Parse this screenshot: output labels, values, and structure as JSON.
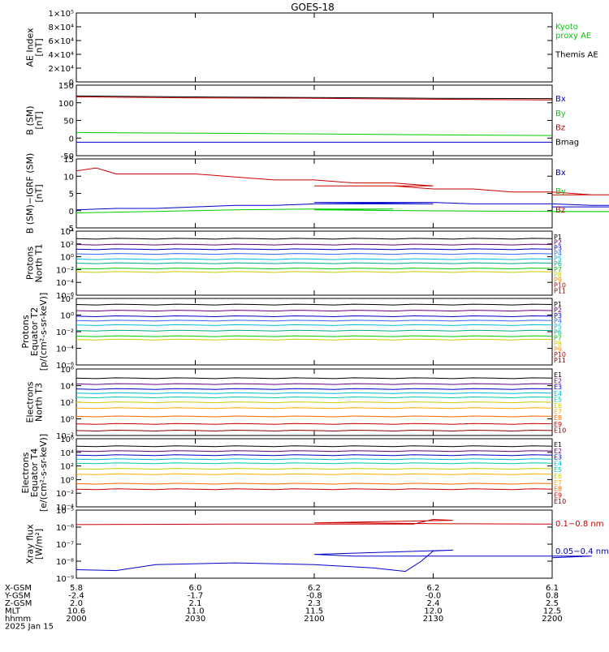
{
  "chart_data": {
    "title": "GOES-18",
    "x_ticks": [
      "2000",
      "2030",
      "2100",
      "2130",
      "2200"
    ],
    "footer": {
      "row_labels": [
        "X-GSM",
        "Y-GSM",
        "Z-GSM",
        "MLT",
        "hhmm",
        "2025 Jan 15"
      ],
      "columns": [
        [
          "5.8",
          "-2.4",
          "2.0",
          "10.6",
          "2000"
        ],
        [
          "6.0",
          "-1.7",
          "2.1",
          "11.0",
          "2030"
        ],
        [
          "6.2",
          "-0.8",
          "2.3",
          "11.5",
          "2100"
        ],
        [
          "6.2",
          "-0.0",
          "2.4",
          "12.0",
          "2130"
        ],
        [
          "6.1",
          "0.8",
          "2.5",
          "12.5",
          "2200"
        ]
      ]
    },
    "panels": [
      {
        "type": "line",
        "ylabel": "AE Index\n[nT]",
        "yticks": [
          "0",
          "2×10⁴",
          "4×10⁴",
          "6×10⁴",
          "8×10⁴",
          "1×10⁵"
        ],
        "legend": [
          {
            "label": "Kyoto\nproxy AE",
            "color": "#00cc00"
          },
          {
            "label": "Themis AE",
            "color": "#000000"
          }
        ],
        "series": []
      },
      {
        "type": "line",
        "ylabel": "B (SM)\n[nT]",
        "ylim": [
          -60,
          150
        ],
        "yticks": [
          "-50",
          "0",
          "50",
          "100",
          "150"
        ],
        "legend": [
          {
            "label": "Bx",
            "color": "#0000cc"
          },
          {
            "label": "By",
            "color": "#00cc00"
          },
          {
            "label": "Bz",
            "color": "#cc0000"
          },
          {
            "label": "Bmag",
            "color": "#000000"
          }
        ],
        "series": [
          {
            "name": "Bmag",
            "color": "#000000",
            "x": [
              2000,
              2030,
              2100,
              2130,
              2200
            ],
            "y": [
              118,
              115,
              113,
              111,
              110
            ]
          },
          {
            "name": "Bz",
            "color": "#cc0000",
            "x": [
              2000,
              2030,
              2100,
              2130,
              2200
            ],
            "y": [
              115,
              112,
              111,
              108,
              106
            ]
          },
          {
            "name": "By",
            "color": "#00cc00",
            "x": [
              2000,
              2030,
              2100,
              2130,
              2200
            ],
            "y": [
              9,
              7,
              5,
              2,
              0
            ]
          },
          {
            "name": "Bx",
            "color": "#0000cc",
            "x": [
              2000,
              2030,
              2100,
              2130,
              2200
            ],
            "y": [
              -20,
              -20,
              -20,
              -20,
              -20
            ]
          }
        ]
      },
      {
        "type": "line",
        "ylabel": "B (SM)−IGRF (SM)\n[nT]",
        "ylim": [
          -6,
          17
        ],
        "yticks": [
          "-5",
          "0",
          "5",
          "10",
          "15"
        ],
        "legend": [
          {
            "label": "Bx",
            "color": "#0000cc"
          },
          {
            "label": "By",
            "color": "#00cc00"
          },
          {
            "label": "Bz",
            "color": "#cc0000"
          }
        ],
        "series": [
          {
            "name": "Bz",
            "color": "#cc0000",
            "x": [
              2000,
              2005,
              2010,
              2020,
              2030,
              2040,
              2050,
              2060,
              2070,
              2080,
              2090,
              2100,
              2110,
              2120,
              2130,
              2140,
              2150,
              2160,
              2170,
              2180,
              2190,
              2200
            ],
            "y": [
              13,
              14,
              12,
              12,
              12,
              11,
              10,
              10,
              9,
              9,
              8,
              8,
              8,
              8,
              7,
              7,
              6,
              6,
              5,
              5,
              5,
              5
            ]
          },
          {
            "name": "Bx",
            "color": "#0000cc",
            "x": [
              2000,
              2010,
              2020,
              2030,
              2040,
              2050,
              2060,
              2070,
              2080,
              2090,
              2100,
              2110,
              2120,
              2130,
              2140,
              2150,
              2160,
              2170,
              2180,
              2190,
              2200
            ],
            "y": [
              0,
              0.5,
              0.5,
              1,
              1.5,
              1.5,
              2,
              2,
              2,
              2,
              2.5,
              2.5,
              2.5,
              2.5,
              2,
              2,
              2,
              1.5,
              1.5,
              1,
              1
            ]
          },
          {
            "name": "By",
            "color": "#00cc00",
            "x": [
              2000,
              2020,
              2040,
              2060,
              2080,
              2100,
              2120,
              2140,
              2160,
              2180,
              2200
            ],
            "y": [
              -1,
              -0.5,
              0,
              0.3,
              0.3,
              0,
              -0.2,
              -0.4,
              -0.5,
              -0.6,
              -0.6
            ]
          }
        ]
      },
      {
        "type": "line",
        "log": true,
        "ylabel": "Protons\nNorth T1",
        "ylim_exp": [
          -7,
          4
        ],
        "yticks": [
          "10⁻⁶",
          "10⁻⁴",
          "10⁻²",
          "10⁰",
          "10²",
          "10⁴"
        ],
        "legend": [
          {
            "label": "P1",
            "color": "#000000"
          },
          {
            "label": "P2",
            "color": "#6a0080"
          },
          {
            "label": "P3",
            "color": "#0000cc"
          },
          {
            "label": "P4",
            "color": "#3366ff"
          },
          {
            "label": "P5",
            "color": "#00bbdd"
          },
          {
            "label": "P6",
            "color": "#00aa88"
          },
          {
            "label": "P7",
            "color": "#00cc00"
          },
          {
            "label": "P8",
            "color": "#cccc00"
          },
          {
            "label": "P9",
            "color": "#ff8800"
          },
          {
            "label": "P10",
            "color": "#cc0000"
          },
          {
            "label": "P11",
            "color": "#880000"
          }
        ],
        "series": [
          {
            "name": "P1",
            "color": "#000000",
            "y_exp": 2.7
          },
          {
            "name": "P2",
            "color": "#6a0080",
            "y_exp": 1.7
          },
          {
            "name": "P3",
            "color": "#0000cc",
            "y_exp": 0.9
          },
          {
            "name": "P4",
            "color": "#3366ff",
            "y_exp": 0.1
          },
          {
            "name": "P5",
            "color": "#00bbdd",
            "y_exp": -0.8
          },
          {
            "name": "P6",
            "color": "#00aa88",
            "y_exp": -1.5
          },
          {
            "name": "P7",
            "color": "#00cc00",
            "y_exp": -2.4
          },
          {
            "name": "P8",
            "color": "#cccc00",
            "y_exp": -3.0
          }
        ]
      },
      {
        "type": "line",
        "log": true,
        "ylabel": "Protons\nEquator T2\n[p/(cm²-s-sr-keV)]",
        "ylim_exp": [
          -8,
          4
        ],
        "yticks": [
          "10⁻⁶",
          "10⁻⁴",
          "10⁻²",
          "10⁰",
          "10²"
        ],
        "legend": [
          {
            "label": "P1",
            "color": "#000000"
          },
          {
            "label": "P2",
            "color": "#6a0080"
          },
          {
            "label": "P3",
            "color": "#0000cc"
          },
          {
            "label": "P4",
            "color": "#3366ff"
          },
          {
            "label": "P5",
            "color": "#00bbdd"
          },
          {
            "label": "P6",
            "color": "#00aa88"
          },
          {
            "label": "P7",
            "color": "#00cc00"
          },
          {
            "label": "P8",
            "color": "#cccc00"
          },
          {
            "label": "P9",
            "color": "#ff8800"
          },
          {
            "label": "P10",
            "color": "#cc0000"
          },
          {
            "label": "P11",
            "color": "#880000"
          }
        ],
        "series": [
          {
            "name": "P1",
            "color": "#000000",
            "y_exp": 2.9
          },
          {
            "name": "P2",
            "color": "#6a0080",
            "y_exp": 1.8
          },
          {
            "name": "P3",
            "color": "#0000cc",
            "y_exp": 0.8
          },
          {
            "name": "P4",
            "color": "#3366ff",
            "y_exp": 0.0
          },
          {
            "name": "P5",
            "color": "#00bbdd",
            "y_exp": -0.8
          },
          {
            "name": "P6",
            "color": "#00aa88",
            "y_exp": -1.8
          },
          {
            "name": "P7",
            "color": "#00cc00",
            "y_exp": -2.8
          },
          {
            "name": "P8",
            "color": "#cccc00",
            "y_exp": -3.4
          }
        ]
      },
      {
        "type": "line",
        "log": true,
        "ylabel": "Electrons\nNorth T3",
        "ylim_exp": [
          -2,
          6
        ],
        "yticks": [
          "10⁻²",
          "10⁰",
          "10²",
          "10⁴",
          "10⁶"
        ],
        "legend": [
          {
            "label": "E1",
            "color": "#000000"
          },
          {
            "label": "E2",
            "color": "#6a0080"
          },
          {
            "label": "E3",
            "color": "#0000cc"
          },
          {
            "label": "E4",
            "color": "#00bbdd"
          },
          {
            "label": "E5",
            "color": "#00ccaa"
          },
          {
            "label": "E6",
            "color": "#cccc00"
          },
          {
            "label": "E7",
            "color": "#ffaa00"
          },
          {
            "label": "E8",
            "color": "#ff6600"
          },
          {
            "label": "E9",
            "color": "#cc0000"
          },
          {
            "label": "E10",
            "color": "#880000"
          }
        ],
        "series": [
          {
            "name": "E1",
            "color": "#000000",
            "y_exp": 4.9
          },
          {
            "name": "E2",
            "color": "#6a0080",
            "y_exp": 4.2
          },
          {
            "name": "E3",
            "color": "#0000cc",
            "y_exp": 3.6
          },
          {
            "name": "E4",
            "color": "#00bbdd",
            "y_exp": 3.1
          },
          {
            "name": "E5",
            "color": "#00ccaa",
            "y_exp": 2.6
          },
          {
            "name": "E6",
            "color": "#cccc00",
            "y_exp": 2.0
          },
          {
            "name": "E7",
            "color": "#ffaa00",
            "y_exp": 1.3
          },
          {
            "name": "E8",
            "color": "#ff6600",
            "y_exp": 0.3
          },
          {
            "name": "E9",
            "color": "#cc0000",
            "y_exp": -0.6
          },
          {
            "name": "E10",
            "color": "#880000",
            "y_exp": -1.4
          }
        ]
      },
      {
        "type": "line",
        "log": true,
        "ylabel": "Electrons\nEquator T4\n[e/(cm²-s-sr-keV)]",
        "ylim_exp": [
          -4,
          6
        ],
        "yticks": [
          "10⁻⁴",
          "10⁻²",
          "10⁰",
          "10²",
          "10⁴",
          "10⁶"
        ],
        "legend": [
          {
            "label": "E1",
            "color": "#000000"
          },
          {
            "label": "E2",
            "color": "#6a0080"
          },
          {
            "label": "E3",
            "color": "#0000cc"
          },
          {
            "label": "E4",
            "color": "#00bbdd"
          },
          {
            "label": "E5",
            "color": "#00ccaa"
          },
          {
            "label": "E6",
            "color": "#cccc00"
          },
          {
            "label": "E7",
            "color": "#ffaa00"
          },
          {
            "label": "E8",
            "color": "#ff6600"
          },
          {
            "label": "E9",
            "color": "#cc0000"
          },
          {
            "label": "E10",
            "color": "#880000"
          }
        ],
        "series": [
          {
            "name": "E1",
            "color": "#000000",
            "y_exp": 4.9
          },
          {
            "name": "E2",
            "color": "#6a0080",
            "y_exp": 4.2
          },
          {
            "name": "E3",
            "color": "#0000cc",
            "y_exp": 3.6
          },
          {
            "name": "E4",
            "color": "#00bbdd",
            "y_exp": 3.0
          },
          {
            "name": "E5",
            "color": "#00ccaa",
            "y_exp": 2.4
          },
          {
            "name": "E6",
            "color": "#cccc00",
            "y_exp": 1.6
          },
          {
            "name": "E7",
            "color": "#ffaa00",
            "y_exp": 0.8
          },
          {
            "name": "E8",
            "color": "#ff6600",
            "y_exp": -0.6
          },
          {
            "name": "E9",
            "color": "#cc0000",
            "y_exp": -1.4
          }
        ]
      },
      {
        "type": "line",
        "log": true,
        "ylabel": "Xray flux\n[W/m²]",
        "ylim_exp": [
          -9,
          -5
        ],
        "yticks": [
          "10⁻⁹",
          "10⁻⁸",
          "10⁻⁷",
          "10⁻⁶",
          "10⁻⁵"
        ],
        "legend": [
          {
            "label": "0.1−0.8 nm",
            "color": "#cc0000"
          },
          {
            "label": "0.05−0.4 nm",
            "color": "#0000cc"
          }
        ],
        "series": [
          {
            "name": "0.1−0.8 nm",
            "color": "#cc0000",
            "x": [
              2000,
              2040,
              2085,
              2090,
              2095,
              2100,
              2110,
              2130,
              2160,
              2200
            ],
            "y_exp": [
              -5.85,
              -5.82,
              -5.82,
              -5.55,
              -5.6,
              -5.75,
              -5.75,
              -5.8,
              -5.82,
              -5.82
            ]
          },
          {
            "name": "0.05−0.4 nm",
            "color": "#0000cc",
            "x": [
              2000,
              2010,
              2020,
              2040,
              2060,
              2075,
              2083,
              2087,
              2090,
              2095,
              2100,
              2110,
              2120,
              2140,
              2170,
              2200
            ],
            "y_exp": [
              -8.5,
              -8.55,
              -8.2,
              -8.1,
              -8.2,
              -8.4,
              -8.6,
              -8.0,
              -7.4,
              -7.35,
              -7.6,
              -7.7,
              -7.7,
              -7.7,
              -7.7,
              -7.8
            ]
          }
        ]
      }
    ]
  }
}
